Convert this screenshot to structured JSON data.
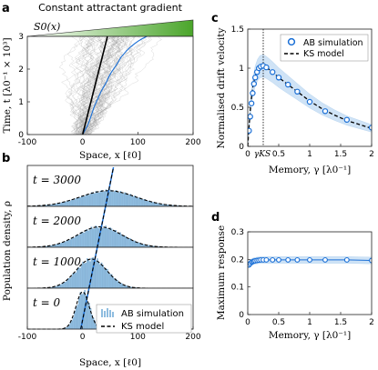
{
  "panel_labels": {
    "a": "a",
    "b": "b",
    "c": "c",
    "d": "d"
  },
  "colors": {
    "blue": "#1a6fd6",
    "band": "#a9cdf0",
    "hist": "#8fbde0",
    "green_start": "#ffffff",
    "green_end": "#4aa52a",
    "trace": "#9a9a9a"
  },
  "chart_data": [
    {
      "panel": "a",
      "type": "line",
      "title": "Constant attractant gradient",
      "gradient_label": "S0(x)",
      "xlabel": "Space, x [ℓ0]",
      "ylabel": "Time, t [λ0⁻¹ × 10³]",
      "xlim": [
        -100,
        200
      ],
      "ylim": [
        0,
        3
      ],
      "xticks": [
        -100,
        0,
        100,
        200
      ],
      "yticks": [
        0,
        1,
        2,
        3
      ],
      "series": [
        {
          "role": "mean trajectory",
          "color": "#1a6fd6",
          "x": [
            0,
            5,
            9,
            12,
            15,
            18,
            21,
            25,
            29,
            33,
            38,
            43,
            47,
            52,
            58,
            64,
            69,
            74,
            79,
            85,
            90,
            96,
            102,
            108,
            113,
            116,
            118
          ],
          "y": [
            0,
            0.15,
            0.28,
            0.4,
            0.55,
            0.7,
            0.85,
            1.0,
            1.15,
            1.3,
            1.45,
            1.6,
            1.75,
            1.9,
            2.05,
            2.2,
            2.35,
            2.45,
            2.55,
            2.65,
            2.72,
            2.8,
            2.87,
            2.93,
            2.97,
            3.0,
            3.0
          ]
        },
        {
          "role": "KS prediction",
          "color": "#000000",
          "x": [
            0,
            45
          ],
          "y": [
            0,
            3.0
          ]
        }
      ]
    },
    {
      "panel": "b",
      "type": "bar",
      "xlabel": "Space, x [ℓ0]",
      "ylabel": "Population density, ρ",
      "xlim": [
        -100,
        200
      ],
      "xticks": [
        -100,
        0,
        100,
        200
      ],
      "legend": [
        "AB simulation",
        "KS model"
      ],
      "legend_position": "lower-right",
      "subpanels": [
        {
          "label": "t = 3000",
          "mean": 46,
          "sd": 50,
          "peak": 0.42
        },
        {
          "label": "t = 2000",
          "mean": 31,
          "sd": 40,
          "peak": 0.55
        },
        {
          "label": "t = 1000",
          "mean": 16,
          "sd": 28,
          "peak": 0.78
        },
        {
          "label": "t = 0",
          "mean": 0,
          "sd": 12,
          "peak": 1.0
        }
      ]
    },
    {
      "panel": "c",
      "type": "line",
      "xlabel": "Memory, γ [λ0⁻¹]",
      "ylabel": "Normalised drift velocity",
      "xlim": [
        0,
        2
      ],
      "ylim": [
        0,
        1.5
      ],
      "xticks": [
        0,
        0.5,
        1,
        1.5,
        2
      ],
      "xtick_labels": [
        "0",
        "0.5",
        "1",
        "1.5",
        "2"
      ],
      "yticks": [
        0,
        0.5,
        1,
        1.5
      ],
      "extra_xtick_label": "γKS",
      "vline_x": 0.25,
      "legend": [
        "AB simulation",
        "KS model"
      ],
      "legend_position": "top-right",
      "sim_points": {
        "x": [
          0.02,
          0.04,
          0.06,
          0.08,
          0.1,
          0.12,
          0.15,
          0.18,
          0.21,
          0.25,
          0.3,
          0.4,
          0.5,
          0.65,
          0.8,
          1.0,
          1.25,
          1.6,
          2.0
        ],
        "y": [
          0.2,
          0.38,
          0.55,
          0.68,
          0.8,
          0.88,
          0.95,
          1.0,
          1.02,
          1.03,
          1.01,
          0.95,
          0.88,
          0.79,
          0.7,
          0.57,
          0.45,
          0.34,
          0.24
        ]
      },
      "model_curve": {
        "x": [
          0,
          0.02,
          0.05,
          0.08,
          0.12,
          0.16,
          0.2,
          0.25,
          0.3,
          0.4,
          0.5,
          0.6,
          0.8,
          1.0,
          1.2,
          1.4,
          1.6,
          1.8,
          2.0
        ],
        "y": [
          0,
          0.25,
          0.55,
          0.75,
          0.9,
          0.98,
          1.02,
          1.03,
          1.01,
          0.95,
          0.88,
          0.82,
          0.7,
          0.58,
          0.48,
          0.4,
          0.33,
          0.28,
          0.23
        ]
      }
    },
    {
      "panel": "d",
      "type": "scatter",
      "xlabel": "Memory, γ [λ0⁻¹]",
      "ylabel": "Maximum response",
      "xlim": [
        0,
        2
      ],
      "ylim": [
        0,
        0.3
      ],
      "xticks": [
        0,
        0.5,
        1,
        1.5,
        2
      ],
      "xtick_labels": [
        "0",
        "0.5",
        "1",
        "1.5",
        "2"
      ],
      "yticks": [
        0,
        0.1,
        0.2,
        0.3
      ],
      "ytick_labels": [
        "0",
        "0.1",
        "0.2",
        "0.3"
      ],
      "sim_points": {
        "x": [
          0.02,
          0.04,
          0.06,
          0.08,
          0.1,
          0.12,
          0.15,
          0.18,
          0.21,
          0.25,
          0.3,
          0.4,
          0.5,
          0.65,
          0.8,
          1.0,
          1.25,
          1.6,
          2.0
        ],
        "y": [
          0.18,
          0.185,
          0.19,
          0.192,
          0.194,
          0.195,
          0.196,
          0.197,
          0.198,
          0.198,
          0.198,
          0.198,
          0.198,
          0.198,
          0.198,
          0.198,
          0.198,
          0.198,
          0.196
        ]
      }
    }
  ]
}
